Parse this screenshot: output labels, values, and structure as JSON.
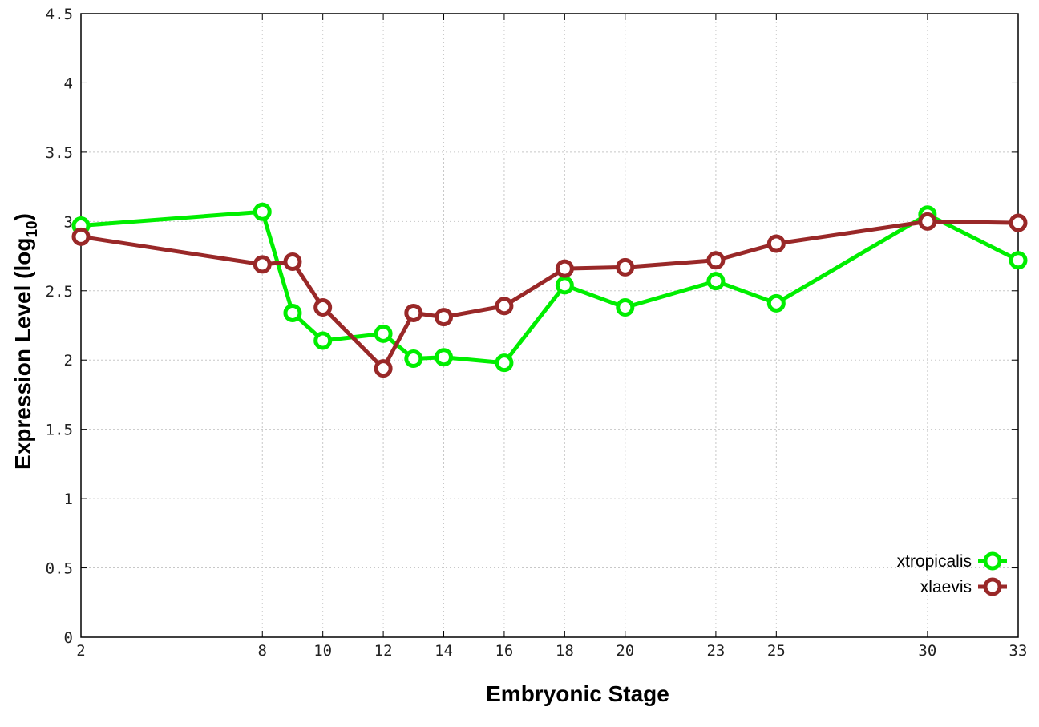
{
  "chart_data": {
    "type": "line",
    "title": "",
    "xlabel": "Embryonic Stage",
    "ylabel_main": "Expression Level (log",
    "ylabel_sub": "10",
    "ylabel_close": ")",
    "xlim": [
      2,
      33
    ],
    "ylim": [
      0,
      4.5
    ],
    "grid": true,
    "legend_position": "bottom-right",
    "x_ticks": [
      2,
      8,
      10,
      12,
      14,
      16,
      18,
      20,
      23,
      25,
      30,
      33
    ],
    "x_tick_labels": [
      "2",
      "8",
      "10",
      "12",
      "14",
      "16",
      "18",
      "20",
      "23",
      "25",
      "30",
      "33"
    ],
    "y_ticks": [
      0,
      0.5,
      1,
      1.5,
      2,
      2.5,
      3,
      3.5,
      4,
      4.5
    ],
    "y_tick_labels": [
      "0",
      "0.5",
      "1",
      "1.5",
      "2",
      "2.5",
      "3",
      "3.5",
      "4",
      "4.5"
    ],
    "series": [
      {
        "name": "xtropicalis",
        "color": "#00ee00",
        "points": [
          {
            "x": 2,
            "y": 2.97
          },
          {
            "x": 8,
            "y": 3.07
          },
          {
            "x": 9,
            "y": 2.34
          },
          {
            "x": 10,
            "y": 2.14
          },
          {
            "x": 12,
            "y": 2.19
          },
          {
            "x": 13,
            "y": 2.01
          },
          {
            "x": 14,
            "y": 2.02
          },
          {
            "x": 16,
            "y": 1.98
          },
          {
            "x": 18,
            "y": 2.54
          },
          {
            "x": 20,
            "y": 2.38
          },
          {
            "x": 23,
            "y": 2.57
          },
          {
            "x": 25,
            "y": 2.41
          },
          {
            "x": 30,
            "y": 3.05
          },
          {
            "x": 33,
            "y": 2.72
          }
        ]
      },
      {
        "name": "xlaevis",
        "color": "#992828",
        "points": [
          {
            "x": 2,
            "y": 2.89
          },
          {
            "x": 8,
            "y": 2.69
          },
          {
            "x": 9,
            "y": 2.71
          },
          {
            "x": 10,
            "y": 2.38
          },
          {
            "x": 12,
            "y": 1.94
          },
          {
            "x": 13,
            "y": 2.34
          },
          {
            "x": 14,
            "y": 2.31
          },
          {
            "x": 16,
            "y": 2.39
          },
          {
            "x": 18,
            "y": 2.66
          },
          {
            "x": 20,
            "y": 2.67
          },
          {
            "x": 23,
            "y": 2.72
          },
          {
            "x": 25,
            "y": 2.84
          },
          {
            "x": 30,
            "y": 3.0
          },
          {
            "x": 33,
            "y": 2.99
          }
        ]
      }
    ]
  }
}
